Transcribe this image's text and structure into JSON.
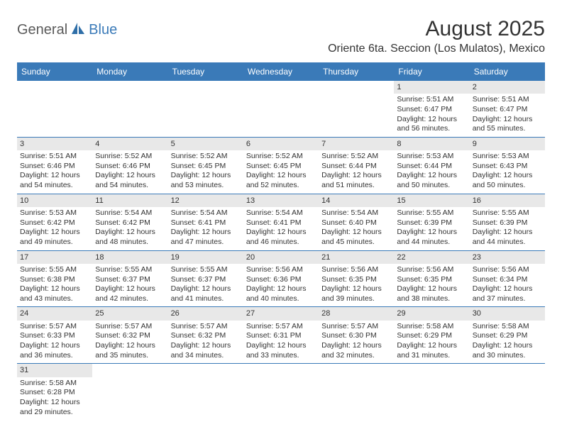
{
  "logo": {
    "text1": "General",
    "text2": "Blue"
  },
  "title": "August 2025",
  "location": "Oriente 6ta. Seccion (Los Mulatos), Mexico",
  "colors": {
    "header_bg": "#3a7ab8",
    "header_text": "#ffffff",
    "daynum_bg": "#e8e8e8",
    "row_border": "#3a7ab8",
    "text": "#333333",
    "page_bg": "#ffffff"
  },
  "weekdays": [
    "Sunday",
    "Monday",
    "Tuesday",
    "Wednesday",
    "Thursday",
    "Friday",
    "Saturday"
  ],
  "weeks": [
    [
      null,
      null,
      null,
      null,
      null,
      {
        "n": "1",
        "sr": "5:51 AM",
        "ss": "6:47 PM",
        "dh": "12",
        "dm": "56"
      },
      {
        "n": "2",
        "sr": "5:51 AM",
        "ss": "6:47 PM",
        "dh": "12",
        "dm": "55"
      }
    ],
    [
      {
        "n": "3",
        "sr": "5:51 AM",
        "ss": "6:46 PM",
        "dh": "12",
        "dm": "54"
      },
      {
        "n": "4",
        "sr": "5:52 AM",
        "ss": "6:46 PM",
        "dh": "12",
        "dm": "54"
      },
      {
        "n": "5",
        "sr": "5:52 AM",
        "ss": "6:45 PM",
        "dh": "12",
        "dm": "53"
      },
      {
        "n": "6",
        "sr": "5:52 AM",
        "ss": "6:45 PM",
        "dh": "12",
        "dm": "52"
      },
      {
        "n": "7",
        "sr": "5:52 AM",
        "ss": "6:44 PM",
        "dh": "12",
        "dm": "51"
      },
      {
        "n": "8",
        "sr": "5:53 AM",
        "ss": "6:44 PM",
        "dh": "12",
        "dm": "50"
      },
      {
        "n": "9",
        "sr": "5:53 AM",
        "ss": "6:43 PM",
        "dh": "12",
        "dm": "50"
      }
    ],
    [
      {
        "n": "10",
        "sr": "5:53 AM",
        "ss": "6:42 PM",
        "dh": "12",
        "dm": "49"
      },
      {
        "n": "11",
        "sr": "5:54 AM",
        "ss": "6:42 PM",
        "dh": "12",
        "dm": "48"
      },
      {
        "n": "12",
        "sr": "5:54 AM",
        "ss": "6:41 PM",
        "dh": "12",
        "dm": "47"
      },
      {
        "n": "13",
        "sr": "5:54 AM",
        "ss": "6:41 PM",
        "dh": "12",
        "dm": "46"
      },
      {
        "n": "14",
        "sr": "5:54 AM",
        "ss": "6:40 PM",
        "dh": "12",
        "dm": "45"
      },
      {
        "n": "15",
        "sr": "5:55 AM",
        "ss": "6:39 PM",
        "dh": "12",
        "dm": "44"
      },
      {
        "n": "16",
        "sr": "5:55 AM",
        "ss": "6:39 PM",
        "dh": "12",
        "dm": "44"
      }
    ],
    [
      {
        "n": "17",
        "sr": "5:55 AM",
        "ss": "6:38 PM",
        "dh": "12",
        "dm": "43"
      },
      {
        "n": "18",
        "sr": "5:55 AM",
        "ss": "6:37 PM",
        "dh": "12",
        "dm": "42"
      },
      {
        "n": "19",
        "sr": "5:55 AM",
        "ss": "6:37 PM",
        "dh": "12",
        "dm": "41"
      },
      {
        "n": "20",
        "sr": "5:56 AM",
        "ss": "6:36 PM",
        "dh": "12",
        "dm": "40"
      },
      {
        "n": "21",
        "sr": "5:56 AM",
        "ss": "6:35 PM",
        "dh": "12",
        "dm": "39"
      },
      {
        "n": "22",
        "sr": "5:56 AM",
        "ss": "6:35 PM",
        "dh": "12",
        "dm": "38"
      },
      {
        "n": "23",
        "sr": "5:56 AM",
        "ss": "6:34 PM",
        "dh": "12",
        "dm": "37"
      }
    ],
    [
      {
        "n": "24",
        "sr": "5:57 AM",
        "ss": "6:33 PM",
        "dh": "12",
        "dm": "36"
      },
      {
        "n": "25",
        "sr": "5:57 AM",
        "ss": "6:32 PM",
        "dh": "12",
        "dm": "35"
      },
      {
        "n": "26",
        "sr": "5:57 AM",
        "ss": "6:32 PM",
        "dh": "12",
        "dm": "34"
      },
      {
        "n": "27",
        "sr": "5:57 AM",
        "ss": "6:31 PM",
        "dh": "12",
        "dm": "33"
      },
      {
        "n": "28",
        "sr": "5:57 AM",
        "ss": "6:30 PM",
        "dh": "12",
        "dm": "32"
      },
      {
        "n": "29",
        "sr": "5:58 AM",
        "ss": "6:29 PM",
        "dh": "12",
        "dm": "31"
      },
      {
        "n": "30",
        "sr": "5:58 AM",
        "ss": "6:29 PM",
        "dh": "12",
        "dm": "30"
      }
    ],
    [
      {
        "n": "31",
        "sr": "5:58 AM",
        "ss": "6:28 PM",
        "dh": "12",
        "dm": "29"
      },
      null,
      null,
      null,
      null,
      null,
      null
    ]
  ],
  "labels": {
    "sunrise": "Sunrise:",
    "sunset": "Sunset:",
    "daylight": "Daylight:",
    "hours": "hours",
    "and": "and",
    "minutes": "minutes."
  }
}
